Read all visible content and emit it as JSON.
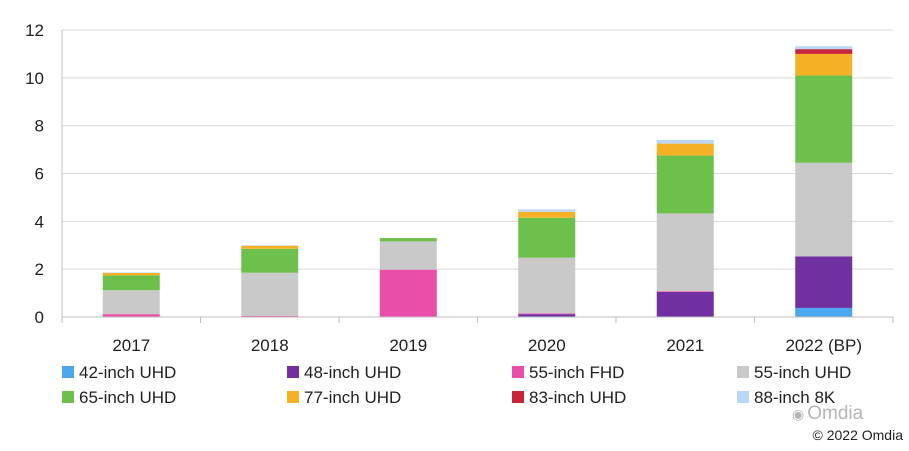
{
  "chart_data": {
    "type": "stacked-bar",
    "title": "",
    "xlabel": "",
    "ylabel": "",
    "ylim": [
      0,
      12
    ],
    "yticks": [
      0,
      2,
      4,
      6,
      8,
      10,
      12
    ],
    "grid": "horizontal",
    "legend_position": "bottom",
    "categories": [
      "2017",
      "2018",
      "2019",
      "2020",
      "2021",
      "2022 (BP)"
    ],
    "series": [
      {
        "name": "42-inch UHD",
        "color": "#4da6f0",
        "values": [
          0,
          0,
          0,
          0,
          0,
          0.38
        ]
      },
      {
        "name": "48-inch UHD",
        "color": "#7030a0",
        "values": [
          0,
          0,
          0,
          0.12,
          1.05,
          2.15
        ]
      },
      {
        "name": "55-inch FHD",
        "color": "#e94fa8",
        "values": [
          0.12,
          0.05,
          1.98,
          0.03,
          0.03,
          0
        ]
      },
      {
        "name": "55-inch UHD",
        "color": "#c9c9c9",
        "values": [
          1.0,
          1.8,
          1.18,
          2.33,
          3.25,
          3.92
        ]
      },
      {
        "name": "65-inch UHD",
        "color": "#6dc04b",
        "values": [
          0.62,
          1.0,
          0.14,
          1.67,
          2.42,
          3.65
        ]
      },
      {
        "name": "77-inch UHD",
        "color": "#f5b026",
        "values": [
          0.1,
          0.13,
          0,
          0.25,
          0.5,
          0.9
        ]
      },
      {
        "name": "83-inch UHD",
        "color": "#c8253b",
        "values": [
          0,
          0,
          0,
          0,
          0,
          0.2
        ]
      },
      {
        "name": "88-inch 8K",
        "color": "#b8d8f5",
        "values": [
          0.02,
          0.02,
          0,
          0.1,
          0.15,
          0.12
        ]
      }
    ]
  },
  "watermark": "Omdia",
  "copyright": "© 2022 Omdia"
}
